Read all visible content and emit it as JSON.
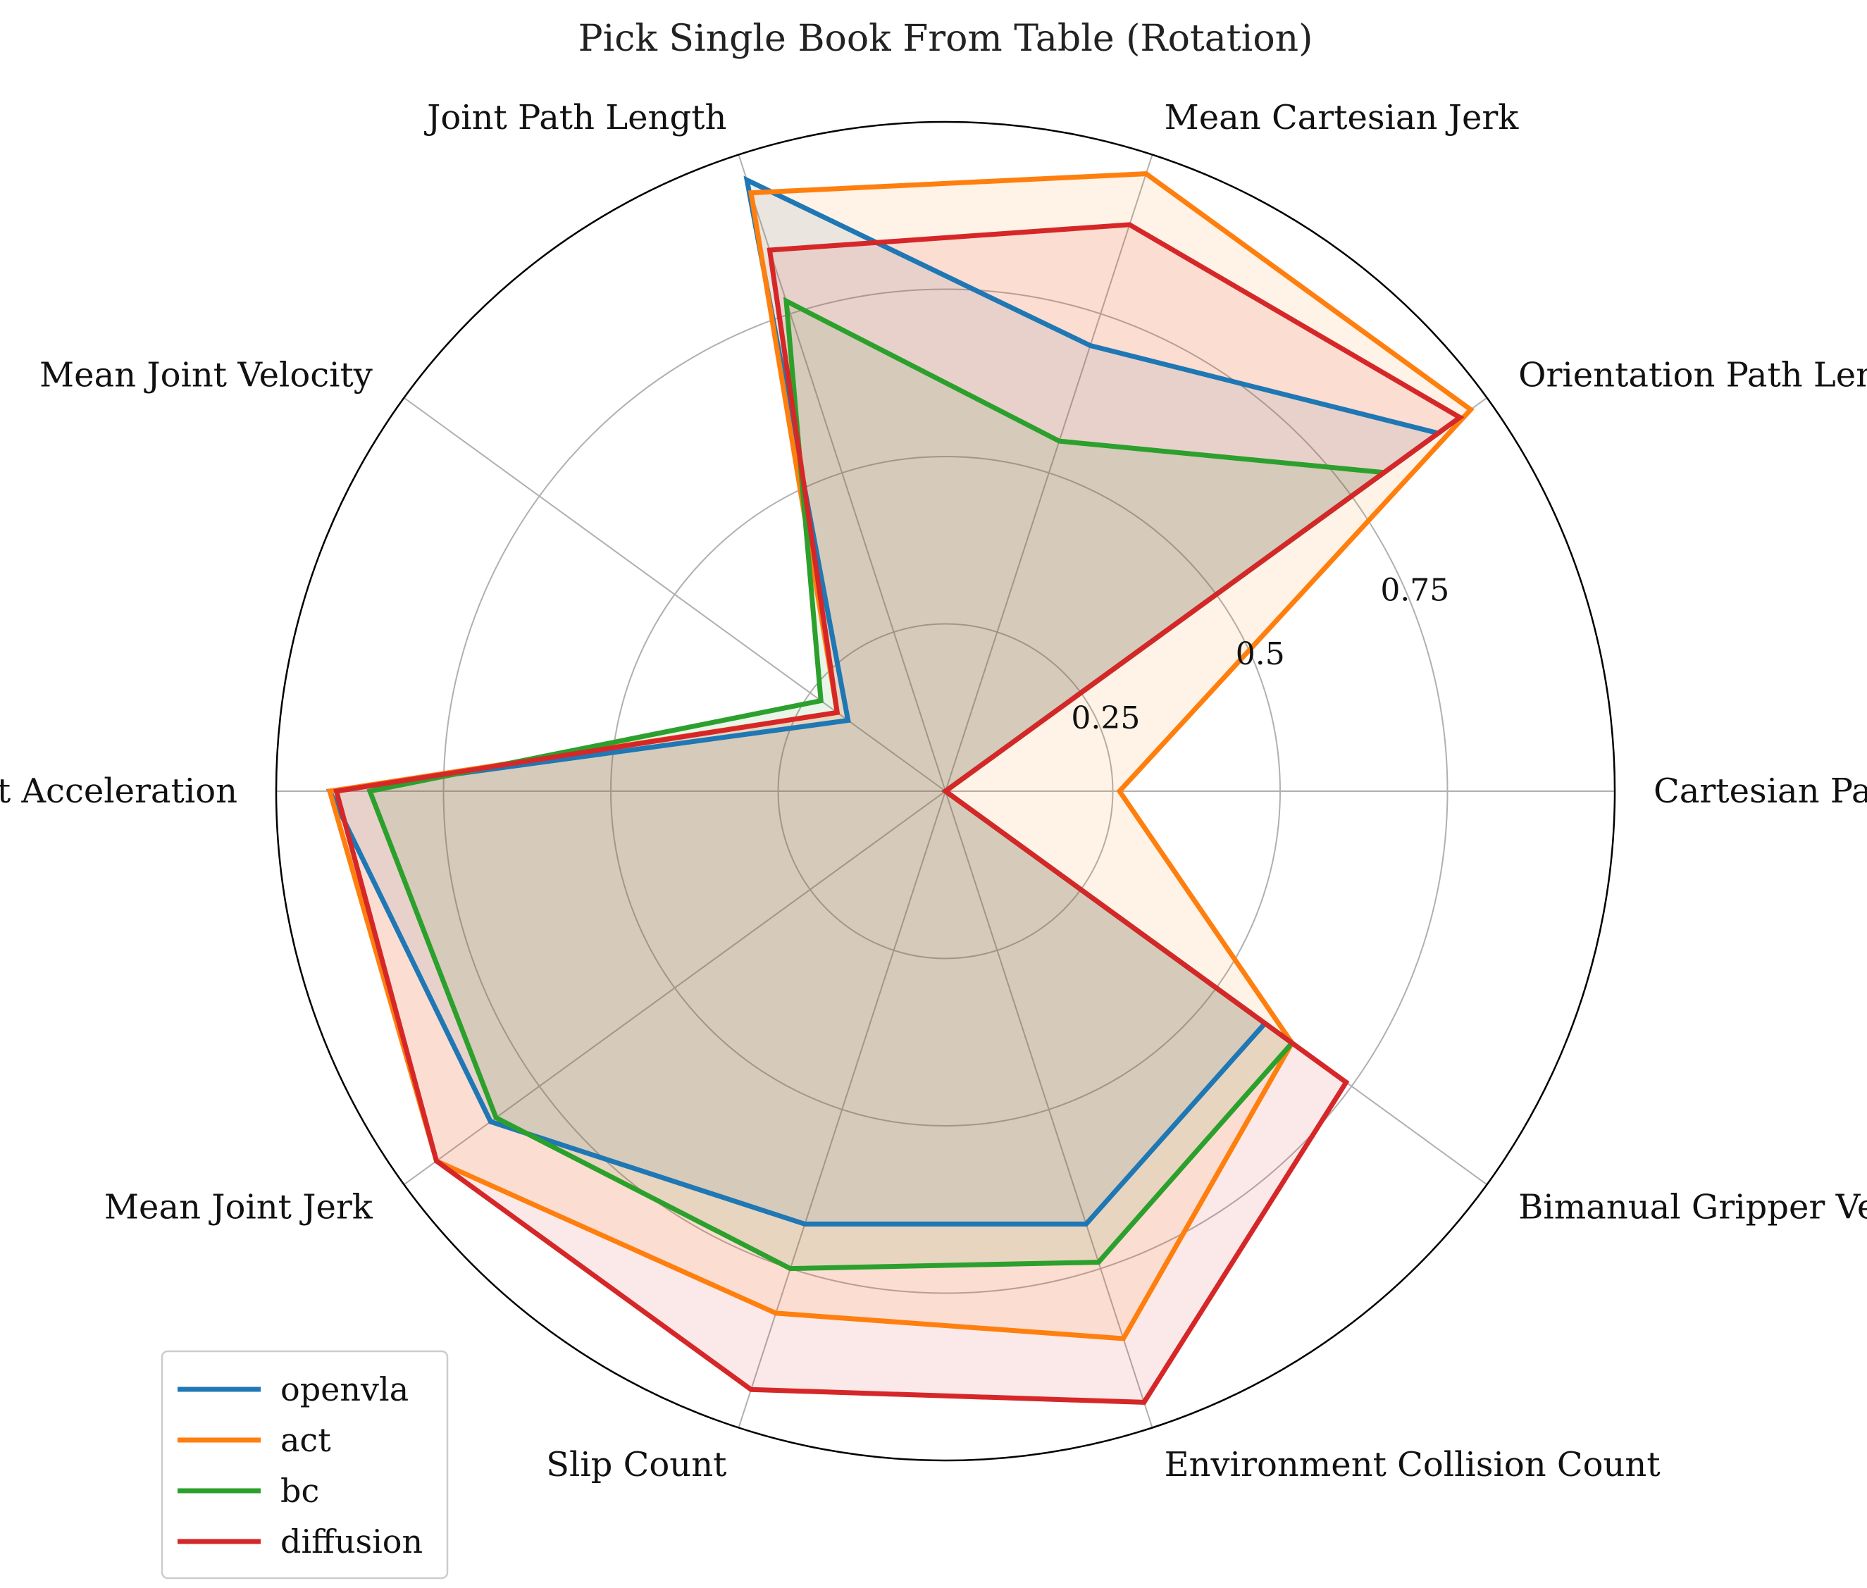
{
  "chart_data": {
    "type": "radar",
    "title": "Pick Single Book From Table (Rotation)",
    "axes": [
      "Cartesian Path Length",
      "Orientation Path Length",
      "Mean Cartesian Jerk",
      "Joint Path Length",
      "Mean Joint Velocity",
      "Mean Joint Acceleration",
      "Mean Joint Jerk",
      "Slip Count",
      "Environment Collision Count",
      "Bimanual Gripper Vertical Difference"
    ],
    "rlim": [
      0,
      1
    ],
    "rticks": [
      0.25,
      0.5,
      0.75
    ],
    "rtick_labels": [
      "0.25",
      "0.5",
      "0.75"
    ],
    "grid": true,
    "legend_position": "lower-left",
    "series": [
      {
        "name": "openvla",
        "color": "#1f77b4",
        "values": [
          0.0,
          0.91,
          0.7,
          0.96,
          0.18,
          0.92,
          0.84,
          0.68,
          0.68,
          0.59
        ]
      },
      {
        "name": "act",
        "color": "#ff7f0e",
        "values": [
          0.26,
          0.97,
          0.97,
          0.94,
          0.2,
          0.92,
          0.94,
          0.82,
          0.86,
          0.64
        ]
      },
      {
        "name": "bc",
        "color": "#2ca02c",
        "values": [
          0.0,
          0.81,
          0.55,
          0.77,
          0.23,
          0.86,
          0.83,
          0.75,
          0.74,
          0.64
        ]
      },
      {
        "name": "diffusion",
        "color": "#d62728",
        "values": [
          0.0,
          0.95,
          0.89,
          0.85,
          0.2,
          0.91,
          0.94,
          0.94,
          0.96,
          0.74
        ]
      }
    ]
  }
}
